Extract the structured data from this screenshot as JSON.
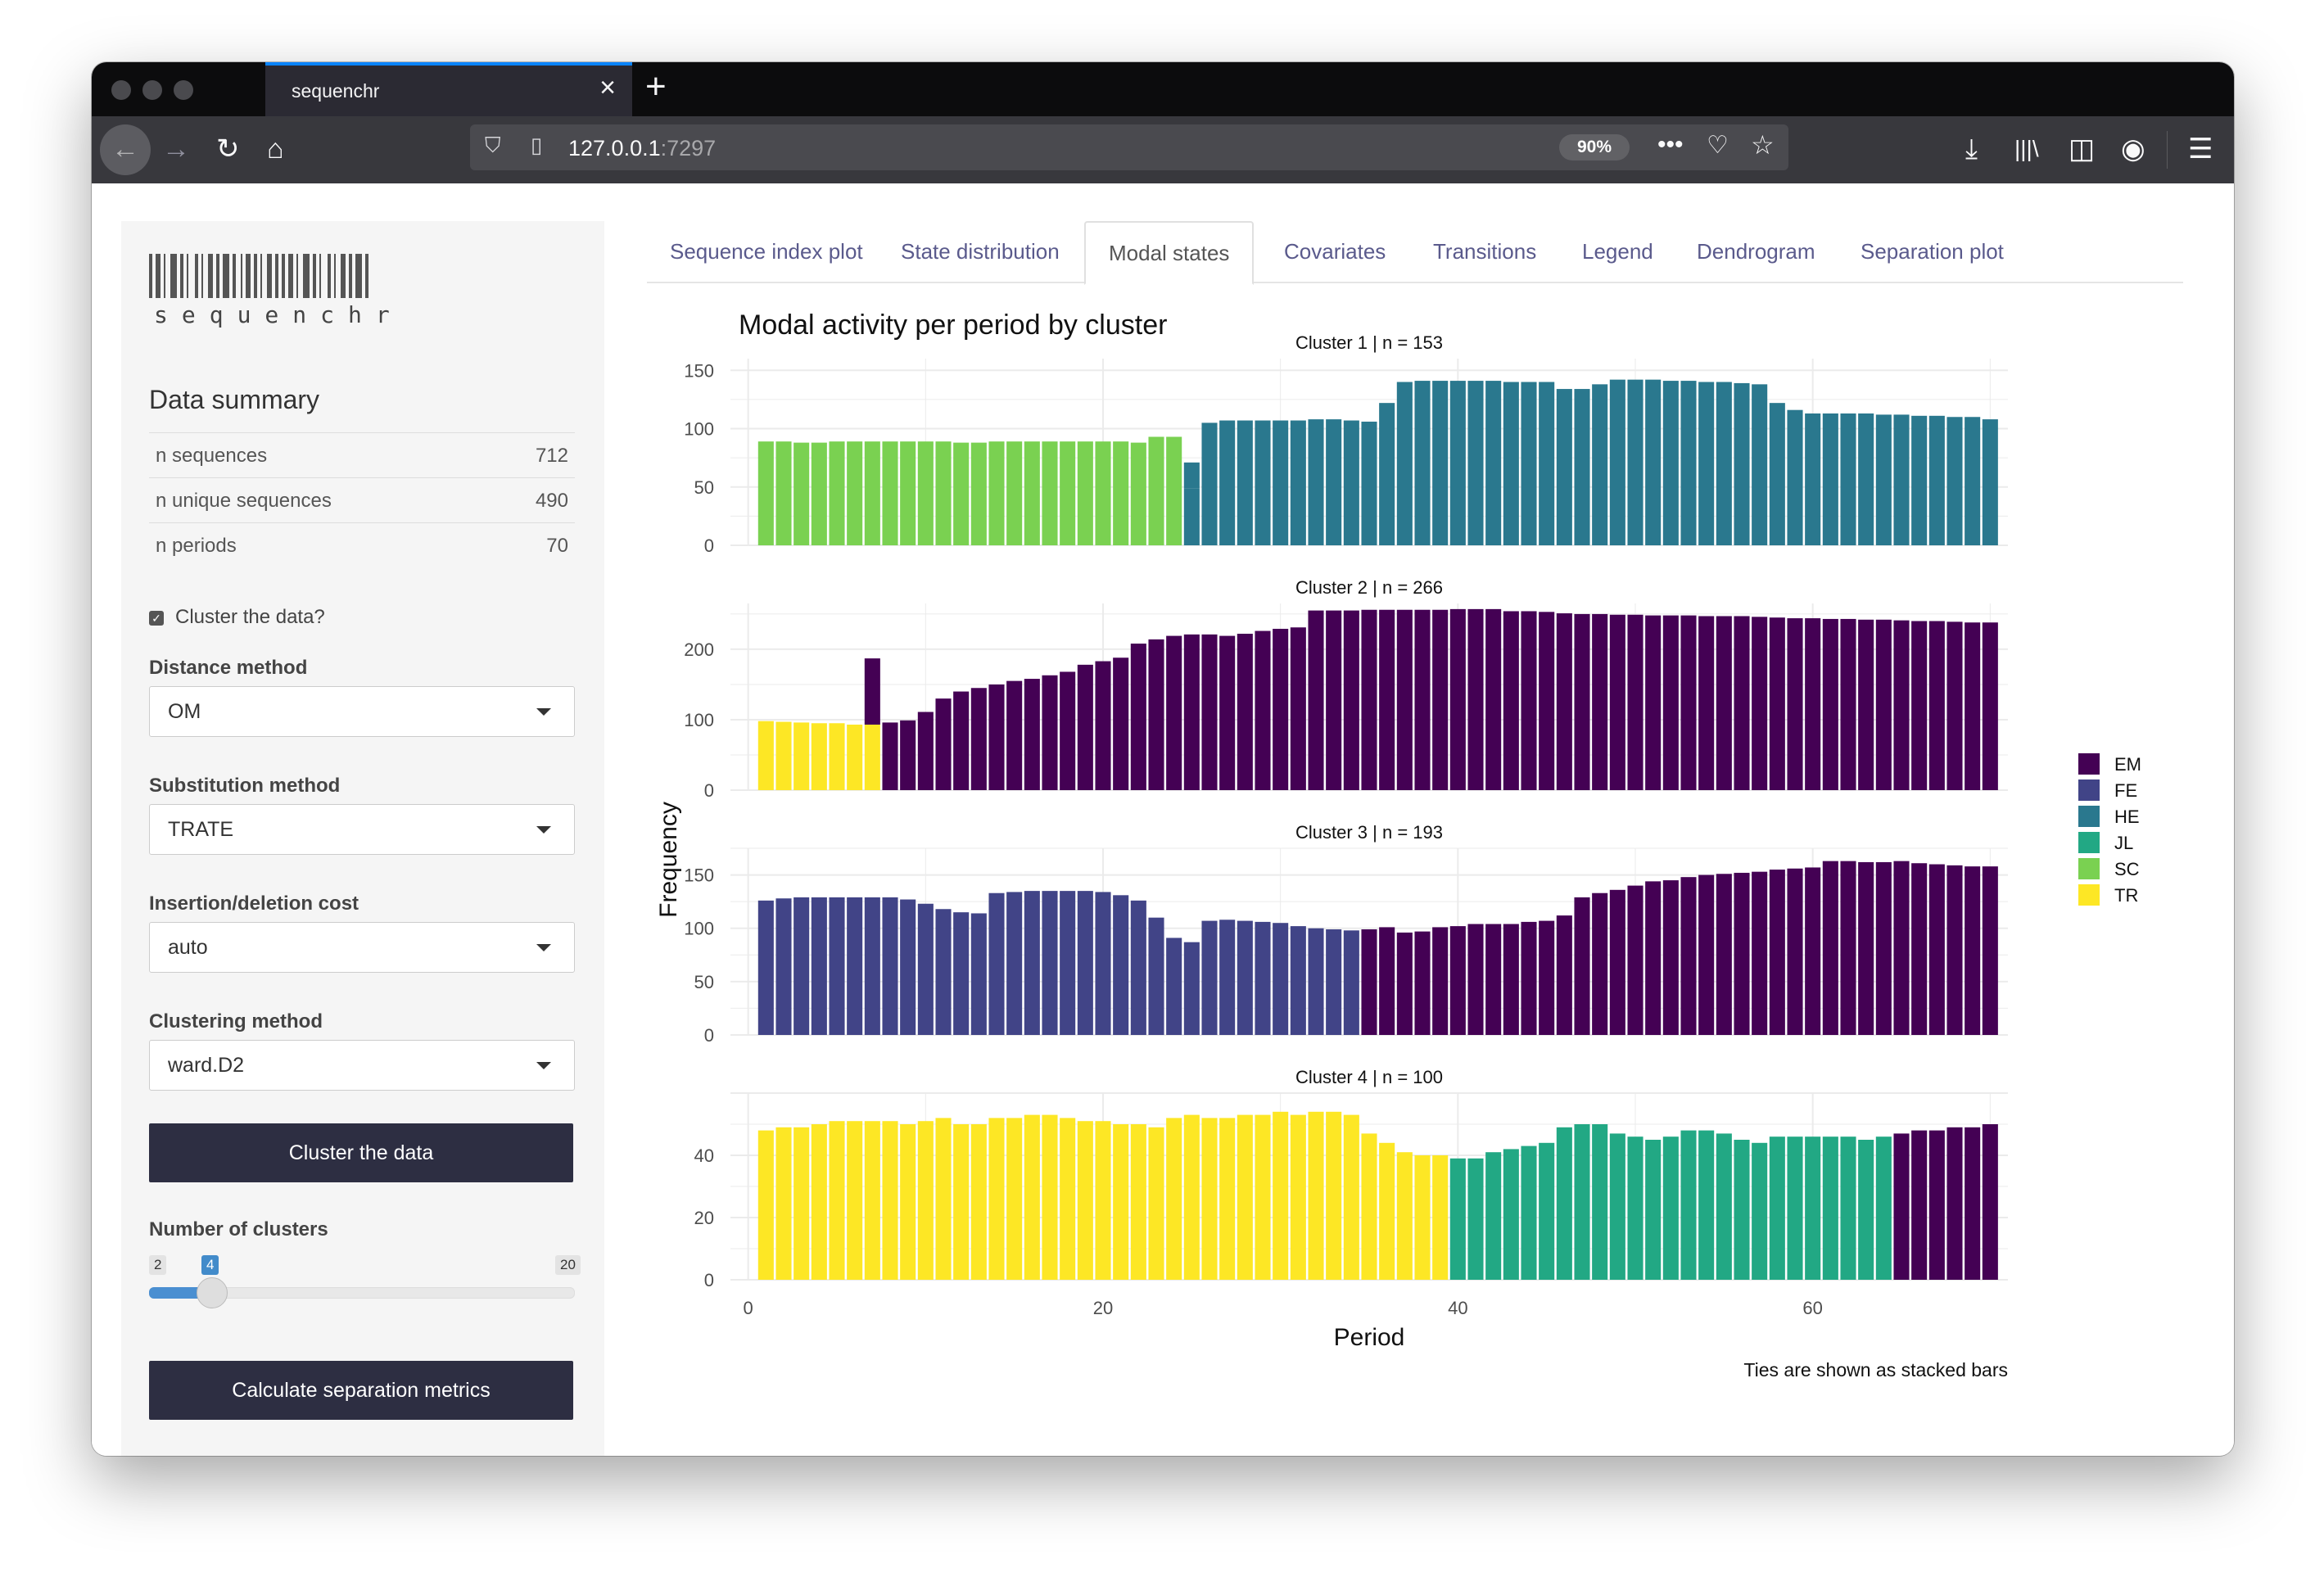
{
  "browser": {
    "tab_title": "sequenchr",
    "url_host": "127.0.0.1",
    "url_port": ":7297",
    "zoom": "90%"
  },
  "sidebar": {
    "logo_text": "sequenchr",
    "summary_title": "Data summary",
    "summary": [
      {
        "label": "n sequences",
        "value": "712"
      },
      {
        "label": "n unique sequences",
        "value": "490"
      },
      {
        "label": "n periods",
        "value": "70"
      }
    ],
    "cluster_checkbox_label": "Cluster the data?",
    "distance_label": "Distance method",
    "distance_value": "OM",
    "substitution_label": "Substitution method",
    "substitution_value": "TRATE",
    "indel_label": "Insertion/deletion cost",
    "indel_value": "auto",
    "clustering_label": "Clustering method",
    "clustering_value": "ward.D2",
    "cluster_button": "Cluster the data",
    "nclusters_label": "Number of clusters",
    "slider_min": "2",
    "slider_value": "4",
    "slider_max": "20",
    "separation_button": "Calculate separation metrics"
  },
  "tabs": [
    "Sequence index plot",
    "State distribution",
    "Modal states",
    "Covariates",
    "Transitions",
    "Legend",
    "Dendrogram",
    "Separation plot"
  ],
  "active_tab": "Modal states",
  "colors": {
    "EM": "#440154",
    "FE": "#414487",
    "HE": "#2a788e",
    "JL": "#22a884",
    "SC": "#7ad151",
    "TR": "#fde725"
  },
  "chart_data": {
    "type": "bar",
    "title": "Modal activity per period by cluster",
    "xlabel": "Period",
    "ylabel": "Frequency",
    "caption": "Ties are shown as stacked bars",
    "x_ticks": [
      0,
      20,
      40,
      60
    ],
    "xlim": [
      -1,
      71
    ],
    "legend": [
      "EM",
      "FE",
      "HE",
      "JL",
      "SC",
      "TR"
    ],
    "panels": [
      {
        "label": "Cluster 1  | n =  153",
        "ylim": [
          0,
          160
        ],
        "y_ticks": [
          0,
          50,
          100,
          150
        ],
        "segments": [
          {
            "state": "SC",
            "from": 1,
            "to": 24,
            "values": [
              89,
              89,
              88,
              88,
              89,
              89,
              89,
              89,
              89,
              89,
              89,
              88,
              88,
              89,
              89,
              89,
              89,
              89,
              89,
              89,
              89,
              88,
              93,
              93
            ]
          },
          {
            "state": "HE",
            "from": 25,
            "to": 70,
            "values": [
              49,
              105,
              107,
              107,
              107,
              107,
              107,
              108,
              108,
              107,
              106,
              122,
              140,
              141,
              141,
              141,
              141,
              141,
              140,
              140,
              140,
              134,
              134,
              138,
              142,
              142,
              142,
              141,
              141,
              140,
              140,
              139,
              138,
              122,
              116,
              113,
              113,
              113,
              113,
              112,
              112,
              111,
              111,
              110,
              110,
              108
            ]
          }
        ],
        "ties": [
          {
            "period": 25,
            "state": "HE",
            "base": 49,
            "value": 22
          }
        ]
      },
      {
        "label": "Cluster 2  | n =  266",
        "ylim": [
          0,
          265
        ],
        "y_ticks": [
          0,
          100,
          200
        ],
        "segments": [
          {
            "state": "TR",
            "from": 1,
            "to": 7,
            "values": [
              98,
              97,
              96,
              95,
              95,
              93,
              93
            ]
          },
          {
            "state": "EM",
            "from": 8,
            "to": 70,
            "values": [
              96,
              99,
              111,
              130,
              140,
              145,
              150,
              155,
              158,
              163,
              168,
              178,
              183,
              188,
              208,
              214,
              219,
              221,
              221,
              219,
              222,
              226,
              229,
              231,
              255,
              255,
              255,
              256,
              256,
              256,
              256,
              256,
              257,
              257,
              257,
              254,
              254,
              253,
              251,
              250,
              250,
              249,
              249,
              248,
              248,
              248,
              247,
              247,
              247,
              246,
              245,
              244,
              244,
              243,
              243,
              242,
              242,
              241,
              240,
              240,
              239,
              238,
              238
            ]
          }
        ],
        "ties": [
          {
            "period": 7,
            "state": "EM",
            "base": 93,
            "value": 94
          }
        ]
      },
      {
        "label": "Cluster 3  | n =  193",
        "ylim": [
          0,
          175
        ],
        "y_ticks": [
          0,
          50,
          100,
          150
        ],
        "segments": [
          {
            "state": "FE",
            "from": 1,
            "to": 34,
            "values": [
              126,
              128,
              129,
              129,
              129,
              129,
              129,
              129,
              127,
              123,
              118,
              115,
              114,
              133,
              134,
              135,
              135,
              135,
              135,
              134,
              131,
              126,
              110,
              91,
              87,
              107,
              108,
              107,
              106,
              105,
              102,
              100,
              99,
              98
            ]
          },
          {
            "state": "EM",
            "from": 35,
            "to": 70,
            "values": [
              99,
              101,
              96,
              97,
              101,
              102,
              104,
              104,
              104,
              106,
              107,
              112,
              129,
              133,
              136,
              140,
              144,
              145,
              148,
              150,
              151,
              152,
              153,
              155,
              156,
              157,
              163,
              163,
              162,
              162,
              163,
              161,
              160,
              159,
              158,
              158
            ]
          }
        ],
        "ties": []
      },
      {
        "label": "Cluster 4  | n =  100",
        "ylim": [
          0,
          60
        ],
        "y_ticks": [
          0,
          20,
          40
        ],
        "segments": [
          {
            "state": "TR",
            "from": 1,
            "to": 39,
            "values": [
              48,
              49,
              49,
              50,
              51,
              51,
              51,
              51,
              50,
              51,
              52,
              50,
              50,
              52,
              52,
              53,
              53,
              52,
              51,
              51,
              50,
              50,
              49,
              52,
              53,
              52,
              52,
              53,
              53,
              54,
              53,
              54,
              54,
              53,
              47,
              44,
              41,
              40,
              40
            ]
          },
          {
            "state": "JL",
            "from": 40,
            "to": 64,
            "values": [
              39,
              39,
              41,
              42,
              43,
              44,
              49,
              50,
              50,
              47,
              46,
              45,
              46,
              48,
              48,
              47,
              45,
              44,
              46,
              46,
              46,
              46,
              46,
              45,
              46
            ]
          },
          {
            "state": "EM",
            "from": 65,
            "to": 70,
            "values": [
              47,
              48,
              48,
              49,
              49,
              50
            ]
          }
        ],
        "ties": []
      }
    ]
  }
}
